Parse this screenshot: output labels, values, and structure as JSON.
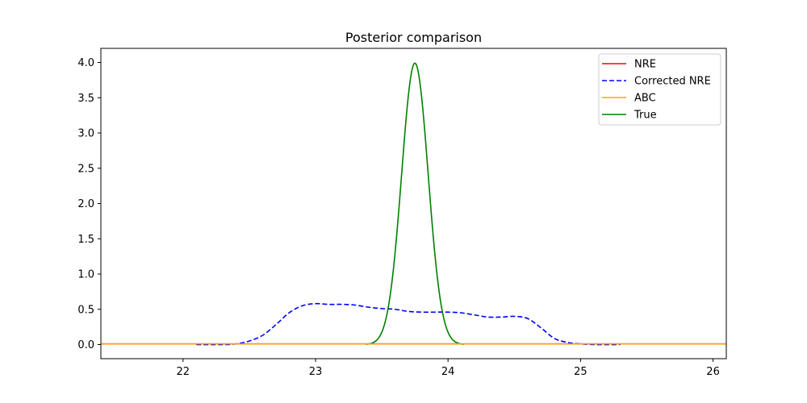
{
  "chart_data": {
    "type": "line",
    "title": "Posterior comparison",
    "xlabel": "",
    "ylabel": "",
    "xlim": [
      21.38,
      26.1
    ],
    "ylim": [
      -0.2,
      4.2
    ],
    "x_ticks": [
      22,
      23,
      24,
      25,
      26
    ],
    "y_ticks": [
      0.0,
      0.5,
      1.0,
      1.5,
      2.0,
      2.5,
      3.0,
      3.5,
      4.0
    ],
    "x_tick_labels": [
      "22",
      "23",
      "24",
      "25",
      "26"
    ],
    "y_tick_labels": [
      "0.0",
      "0.5",
      "1.0",
      "1.5",
      "2.0",
      "2.5",
      "3.0",
      "3.5",
      "4.0"
    ],
    "grid": false,
    "legend_position": "top-right",
    "series": [
      {
        "name": "NRE",
        "color": "#ff0000",
        "dash": "solid",
        "x": [
          21.38,
          22.0,
          23.0,
          24.0,
          25.0,
          26.1
        ],
        "y": [
          0.01,
          0.01,
          0.01,
          0.01,
          0.01,
          0.01
        ]
      },
      {
        "name": "Corrected NRE",
        "color": "#0000ff",
        "dash": "dashed",
        "x": [
          22.1,
          22.3,
          22.4,
          22.5,
          22.6,
          22.7,
          22.8,
          22.9,
          23.0,
          23.1,
          23.2,
          23.3,
          23.4,
          23.5,
          23.6,
          23.7,
          23.8,
          23.9,
          24.0,
          24.1,
          24.2,
          24.3,
          24.4,
          24.5,
          24.6,
          24.7,
          24.8,
          24.9,
          25.0,
          25.1,
          25.3
        ],
        "y": [
          0.0,
          0.0,
          0.01,
          0.05,
          0.13,
          0.28,
          0.45,
          0.55,
          0.58,
          0.57,
          0.57,
          0.56,
          0.53,
          0.51,
          0.5,
          0.47,
          0.46,
          0.46,
          0.46,
          0.45,
          0.42,
          0.39,
          0.39,
          0.4,
          0.37,
          0.24,
          0.09,
          0.03,
          0.01,
          0.0,
          0.0
        ]
      },
      {
        "name": "ABC",
        "color": "#ffa500",
        "dash": "solid",
        "x": [
          21.38,
          22.0,
          23.0,
          24.0,
          25.0,
          26.1
        ],
        "y": [
          0.01,
          0.01,
          0.01,
          0.01,
          0.01,
          0.01
        ]
      },
      {
        "name": "True",
        "color": "#008000",
        "dash": "solid",
        "mu": 23.75,
        "sigma": 0.1,
        "x_range": [
          23.38,
          24.12
        ],
        "peak": 3.99
      }
    ]
  }
}
